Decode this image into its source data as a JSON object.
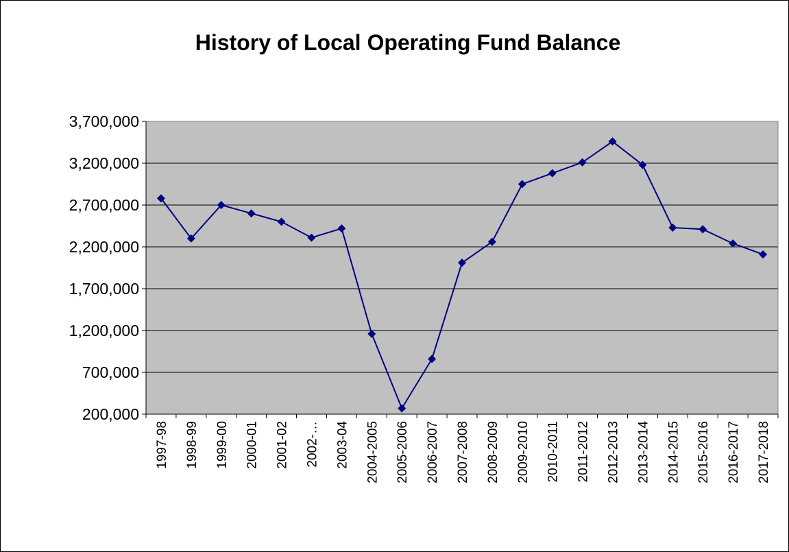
{
  "chart_data": {
    "type": "line",
    "title": "History of Local Operating Fund Balance",
    "categories": [
      "1997-98",
      "1998-99",
      "1999-00",
      "2000-01",
      "2001-02",
      "2002-…",
      "2003-04",
      "2004-2005",
      "2005-2006",
      "2006-2007",
      "2007-2008",
      "2008-2009",
      "2009-2010",
      "2010-2011",
      "2011-2012",
      "2012-2013",
      "2013-2014",
      "2014-2015",
      "2015-2016",
      "2016-2017",
      "2017-2018"
    ],
    "series": [
      {
        "color": "#000080",
        "values": [
          2780000,
          2300000,
          2700000,
          2600000,
          2500000,
          2310000,
          2420000,
          1160000,
          270000,
          860000,
          2010000,
          2260000,
          2950000,
          3080000,
          3210000,
          3460000,
          3180000,
          2430000,
          2410000,
          2240000,
          2110000
        ]
      }
    ],
    "ylim": [
      200000,
      3700000
    ],
    "yticks": [
      {
        "value": 200000,
        "label": "200,000"
      },
      {
        "value": 700000,
        "label": "700,000"
      },
      {
        "value": 1200000,
        "label": "1,200,000"
      },
      {
        "value": 1700000,
        "label": "1,700,000"
      },
      {
        "value": 2200000,
        "label": "2,200,000"
      },
      {
        "value": 2700000,
        "label": "2,700,000"
      },
      {
        "value": 3200000,
        "label": "3,200,000"
      },
      {
        "value": 3700000,
        "label": "3,700,000"
      }
    ],
    "grid": true,
    "plot_background": "#c0c0c0"
  }
}
